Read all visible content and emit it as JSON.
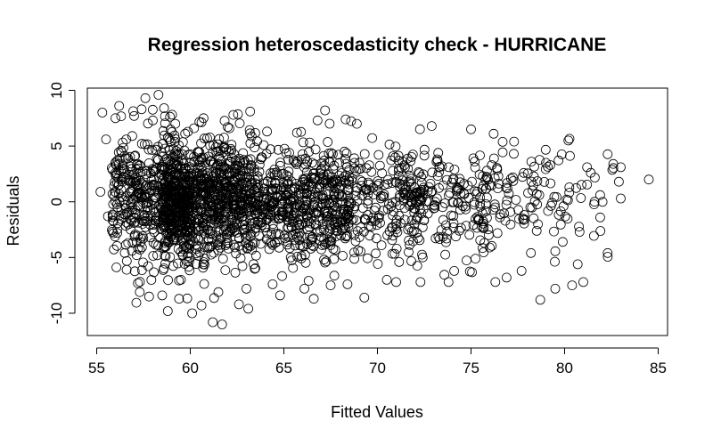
{
  "chart_data": {
    "type": "scatter",
    "title": "Regression heteroscedasticity check - HURRICANE",
    "xlabel": "Fitted Values",
    "ylabel": "Residuals",
    "xlim": [
      54.5,
      85.5
    ],
    "ylim": [
      -12,
      10.2
    ],
    "x_ticks": [
      55,
      60,
      65,
      70,
      75,
      80,
      85
    ],
    "y_ticks": [
      -10,
      -5,
      0,
      5,
      10
    ],
    "x_tick_labels": [
      "55",
      "60",
      "65",
      "70",
      "75",
      "80",
      "85"
    ],
    "y_tick_labels": [
      "-10",
      "-5",
      "0",
      "5",
      "10"
    ],
    "grid": false,
    "legend": "none",
    "marker": "open-circle",
    "marker_color": "#000000",
    "points": [
      {
        "x": 55.3,
        "y": 8.0
      },
      {
        "x": 55.2,
        "y": 0.9
      },
      {
        "x": 55.5,
        "y": 5.6
      },
      {
        "x": 55.6,
        "y": -1.3
      },
      {
        "x": 56.0,
        "y": 7.5
      },
      {
        "x": 56.2,
        "y": 8.6
      },
      {
        "x": 56.1,
        "y": -2.8
      },
      {
        "x": 56.3,
        "y": 4.6
      },
      {
        "x": 56.5,
        "y": -4.6
      },
      {
        "x": 56.6,
        "y": -6.1
      },
      {
        "x": 56.9,
        "y": 5.9
      },
      {
        "x": 57.0,
        "y": 7.7
      },
      {
        "x": 57.2,
        "y": -7.3
      },
      {
        "x": 57.3,
        "y": -8.1
      },
      {
        "x": 57.4,
        "y": 8.3
      },
      {
        "x": 57.6,
        "y": 9.3
      },
      {
        "x": 57.8,
        "y": -8.5
      },
      {
        "x": 58.0,
        "y": 7.3
      },
      {
        "x": 58.3,
        "y": 9.6
      },
      {
        "x": 58.6,
        "y": 8.4
      },
      {
        "x": 58.5,
        "y": -8.4
      },
      {
        "x": 58.8,
        "y": -9.8
      },
      {
        "x": 59.2,
        "y": 7.0
      },
      {
        "x": 59.4,
        "y": -8.7
      },
      {
        "x": 59.5,
        "y": -7.0
      },
      {
        "x": 60.2,
        "y": 6.6
      },
      {
        "x": 60.1,
        "y": -10.0
      },
      {
        "x": 60.6,
        "y": -9.3
      },
      {
        "x": 60.9,
        "y": 5.7
      },
      {
        "x": 61.2,
        "y": -10.8
      },
      {
        "x": 61.5,
        "y": -8.1
      },
      {
        "x": 61.7,
        "y": -11.0
      },
      {
        "x": 62.0,
        "y": 6.7
      },
      {
        "x": 62.3,
        "y": 7.8
      },
      {
        "x": 62.6,
        "y": -9.2
      },
      {
        "x": 63.1,
        "y": -9.6
      },
      {
        "x": 63.2,
        "y": 8.1
      },
      {
        "x": 63.0,
        "y": -7.8
      },
      {
        "x": 64.1,
        "y": 6.3
      },
      {
        "x": 64.4,
        "y": -7.4
      },
      {
        "x": 64.8,
        "y": -8.4
      },
      {
        "x": 65.7,
        "y": 6.2
      },
      {
        "x": 66.1,
        "y": -7.8
      },
      {
        "x": 66.6,
        "y": -8.7
      },
      {
        "x": 66.8,
        "y": 7.3
      },
      {
        "x": 67.2,
        "y": 8.2
      },
      {
        "x": 67.5,
        "y": -7.5
      },
      {
        "x": 68.3,
        "y": 7.4
      },
      {
        "x": 68.4,
        "y": -7.4
      },
      {
        "x": 68.9,
        "y": 7.0
      },
      {
        "x": 69.3,
        "y": -8.6
      },
      {
        "x": 70.5,
        "y": -7.0
      },
      {
        "x": 71.0,
        "y": -7.2
      },
      {
        "x": 72.3,
        "y": -7.2
      },
      {
        "x": 72.9,
        "y": 6.8
      },
      {
        "x": 73.8,
        "y": -7.2
      },
      {
        "x": 74.1,
        "y": -6.2
      },
      {
        "x": 75.0,
        "y": 6.5
      },
      {
        "x": 76.3,
        "y": -7.2
      },
      {
        "x": 76.9,
        "y": -6.8
      },
      {
        "x": 77.3,
        "y": 5.4
      },
      {
        "x": 77.7,
        "y": -6.2
      },
      {
        "x": 78.7,
        "y": -8.8
      },
      {
        "x": 79.0,
        "y": 3.5
      },
      {
        "x": 79.5,
        "y": -7.8
      },
      {
        "x": 80.2,
        "y": 5.5
      },
      {
        "x": 80.4,
        "y": -7.5
      },
      {
        "x": 80.7,
        "y": -5.6
      },
      {
        "x": 81.0,
        "y": -7.2
      },
      {
        "x": 81.2,
        "y": 3.1
      },
      {
        "x": 81.4,
        "y": 2.6
      },
      {
        "x": 81.6,
        "y": 0.0
      },
      {
        "x": 81.9,
        "y": 0.6
      },
      {
        "x": 82.3,
        "y": -4.6
      },
      {
        "x": 82.6,
        "y": 3.4
      },
      {
        "x": 83.0,
        "y": 3.1
      },
      {
        "x": 83.0,
        "y": 0.3
      },
      {
        "x": 82.9,
        "y": 1.8
      },
      {
        "x": 84.5,
        "y": 2.0
      },
      {
        "x": 81.9,
        "y": -1.4
      },
      {
        "x": 78.2,
        "y": -4.6
      },
      {
        "x": 79.9,
        "y": -3.6
      },
      {
        "x": 80.8,
        "y": -2.7
      },
      {
        "x": 76.0,
        "y": -4.1
      }
    ],
    "clusters": [
      {
        "x_min": 55.8,
        "x_max": 60.0,
        "y_mean": 0.3,
        "y_sd": 2.9,
        "count": 420
      },
      {
        "x_min": 58.5,
        "x_max": 63.5,
        "y_mean": 0.2,
        "y_sd": 2.7,
        "count": 900
      },
      {
        "x_min": 63.5,
        "x_max": 68.5,
        "y_mean": 0.0,
        "y_sd": 2.4,
        "count": 520
      },
      {
        "x_min": 68.5,
        "x_max": 72.5,
        "y_mean": 0.2,
        "y_sd": 2.3,
        "count": 230
      },
      {
        "x_min": 72.5,
        "x_max": 76.5,
        "y_mean": 0.2,
        "y_sd": 2.4,
        "count": 150
      },
      {
        "x_min": 76.5,
        "x_max": 80.5,
        "y_mean": 0.2,
        "y_sd": 2.2,
        "count": 75
      },
      {
        "x_min": 80.5,
        "x_max": 83.0,
        "y_mean": 0.5,
        "y_sd": 2.0,
        "count": 14
      }
    ]
  }
}
